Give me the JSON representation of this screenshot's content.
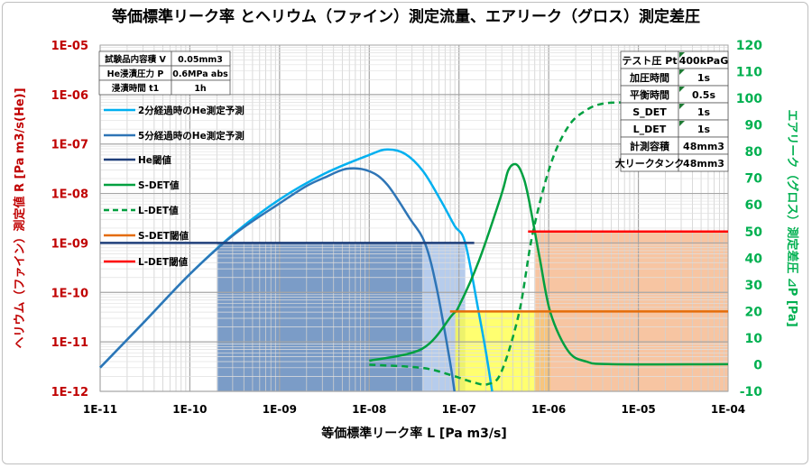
{
  "chart_data": {
    "type": "line",
    "title": "等価標準リーク率 とヘリウム（ファイン）測定流量、エアリーク（グロス）測定差圧",
    "xlabel": "等価標準リーク率 L [Pa m3/s]",
    "ylabel_left": "ヘリウム（ファイン）測定値 R [Pa m3/s(He)]",
    "ylabel_right": "エアリーク（グロス）測定差圧 ⊿P [Pa]",
    "x_scale": "log",
    "xlim_log10": [
      -11,
      -4
    ],
    "x_ticks": [
      "1E-11",
      "1E-10",
      "1E-09",
      "1E-08",
      "1E-07",
      "1E-06",
      "1E-05",
      "1E-04"
    ],
    "y_left_scale": "log",
    "ylim_left_log10": [
      -12,
      -5
    ],
    "y_left_ticks": [
      "1E-05",
      "1E-06",
      "1E-07",
      "1E-08",
      "1E-09",
      "1E-10",
      "1E-11",
      "1E-12"
    ],
    "ylim_right": [
      -10,
      120
    ],
    "y_right_ticks": [
      "120",
      "110",
      "100",
      "90",
      "80",
      "70",
      "60",
      "50",
      "40",
      "30",
      "20",
      "10",
      "0",
      "-10"
    ],
    "grid": true,
    "legend_position": "top-left",
    "series": [
      {
        "name": "2分経過時のHe測定予測",
        "axis": "left",
        "color": "#00b0f0",
        "dash": false,
        "log10_x": [
          -11,
          -10.5,
          -10,
          -9.5,
          -9,
          -8.5,
          -8,
          -7.8,
          -7.6,
          -7.4,
          -7.2,
          -7.05,
          -6.93,
          -6.78,
          -6.7,
          -6.63
        ],
        "log10_y": [
          -11.52,
          -10.58,
          -9.63,
          -8.8,
          -8.12,
          -7.6,
          -7.22,
          -7.11,
          -7.2,
          -7.55,
          -8.15,
          -8.65,
          -9.0,
          -10.4,
          -11.2,
          -12
        ]
      },
      {
        "name": "5分経過時のHe測定予測",
        "axis": "left",
        "color": "#2e75b6",
        "dash": false,
        "log10_x": [
          -11,
          -10.5,
          -10,
          -9.5,
          -9,
          -8.7,
          -8.5,
          -8.25,
          -8,
          -7.8,
          -7.55,
          -7.38,
          -7.25,
          -7.1,
          -7.05
        ],
        "log10_y": [
          -11.52,
          -10.58,
          -9.63,
          -8.82,
          -8.2,
          -7.85,
          -7.68,
          -7.5,
          -7.55,
          -7.82,
          -8.5,
          -9.0,
          -9.9,
          -11.4,
          -12
        ]
      },
      {
        "name": "He閾値",
        "axis": "left",
        "color": "#1f3f7a",
        "dash": false,
        "log10_x": [
          -11,
          -6.83
        ],
        "log10_y": [
          -9,
          -9
        ]
      },
      {
        "name": "S-DET値",
        "axis": "right",
        "color": "#00a040",
        "dash": false,
        "log10_x": [
          -8,
          -7.41,
          -7.08,
          -7,
          -6.78,
          -6.53,
          -6.45,
          -6.37,
          -6.3,
          -6.23,
          -6.1,
          -5.98,
          -5.78,
          -5.58,
          -5.3,
          -4
        ],
        "y": [
          1.5,
          6,
          18.5,
          22,
          38.8,
          63.5,
          73,
          75.3,
          72,
          63.5,
          40,
          19.5,
          5,
          1.2,
          0.2,
          0.2
        ]
      },
      {
        "name": "L-DET値",
        "axis": "right",
        "color": "#00a040",
        "dash": true,
        "log10_x": [
          -8,
          -7.41,
          -7.08,
          -6.85,
          -6.68,
          -6.53,
          -6.33,
          -6.18,
          -5.98,
          -5.78,
          -5.58,
          -5.4,
          -5.17
        ],
        "y": [
          0,
          -1.2,
          -4,
          -6.5,
          -7.3,
          -2.9,
          19.5,
          49,
          75,
          89.5,
          95.6,
          98,
          98.5
        ]
      },
      {
        "name": "S-DET閾値",
        "axis": "right",
        "color": "#e46c0a",
        "dash": false,
        "log10_x": [
          -7.1,
          -4
        ],
        "y": [
          20,
          20
        ]
      },
      {
        "name": "L-DET閾値",
        "axis": "right",
        "color": "#ff0000",
        "dash": false,
        "log10_x": [
          -6.23,
          -4
        ],
        "y": [
          50,
          50
        ]
      }
    ],
    "shaded_regions": [
      {
        "axis": "left",
        "log10_x": [
          -9.69,
          -7.41
        ],
        "log10_y": [
          -12,
          -9
        ],
        "color": "#4f7bb4"
      },
      {
        "axis": "left",
        "log10_x": [
          -7.41,
          -6.93
        ],
        "log10_y": [
          -12,
          -9
        ],
        "color": "#9dbbe6"
      },
      {
        "axis": "right",
        "log10_x": [
          -7.04,
          -5.98
        ],
        "y": [
          -10,
          20
        ],
        "color": "#ffff40"
      },
      {
        "axis": "right",
        "log10_x": [
          -6.15,
          -4
        ],
        "y": [
          -10,
          50
        ],
        "color": "#f4b183"
      }
    ]
  },
  "params_left": [
    {
      "label": "試験品内容積 V",
      "value": "0.05mm3"
    },
    {
      "label": "He浸漬圧力 P",
      "value": "0.6MPa abs"
    },
    {
      "label": "浸漬時間 t1",
      "value": "1h"
    }
  ],
  "params_right": [
    {
      "label": "テスト圧 Pt",
      "value": "400kPaG"
    },
    {
      "label": "加圧時間",
      "value": "1s"
    },
    {
      "label": "平衡時間",
      "value": "0.5s"
    },
    {
      "label": "S_DET",
      "value": "1s"
    },
    {
      "label": "L_DET",
      "value": "1s"
    },
    {
      "label": "計測容積",
      "value": "48mm3"
    },
    {
      "label": "大リークタンク",
      "value": "48mm3"
    }
  ]
}
